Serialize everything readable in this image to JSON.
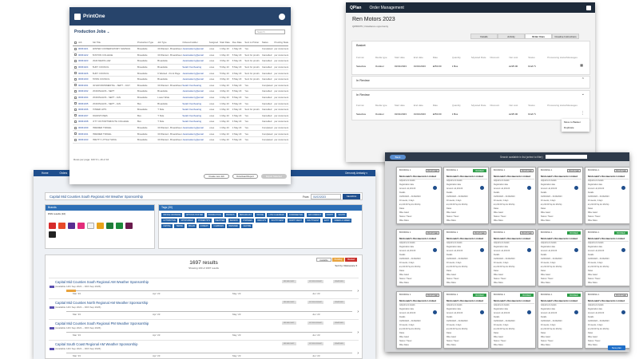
{
  "printone": {
    "brand": "PrintOne",
    "section_title": "Production Jobs",
    "search_placeholder": "Search",
    "columns": [
      "Job",
      "Job Title",
      "Production Type",
      "Job Type",
      "Ordered Holder",
      "Assigned",
      "Start Date",
      "Due Date",
      "Sent to Printer",
      "Status",
      "Proofing Status"
    ],
    "rows": [
      [
        "00061021",
        "WINTER CONSERVATORY SAVINGS",
        "Broadside",
        "30 Wanted - Broadsheet",
        "JessicaHenry@email",
        "jones",
        "1 May 23",
        "1 May 23",
        "Yes",
        "Completed",
        "per customers"
      ],
      [
        "00061222",
        "BOSTON COLLEGE",
        "Broadside",
        "30 Wanted - Broadsheet",
        "JessicaHenry@email",
        "jones",
        "1 May 23",
        "5 May 23",
        "Sent for proofs",
        "Cancelled",
        "per customers"
      ],
      [
        "00061023",
        "MAIN NEWS LAW",
        "Broadside",
        "Broadside",
        "JessicaHenry@email",
        "jones",
        "3 May 23",
        "6 May 23",
        "Sent for proofs",
        "Cancelled",
        "per customers"
      ],
      [
        "00061024",
        "BURY COUNCIL",
        "Broadside",
        "Broadside",
        "Sarah Overhearing",
        "jones",
        "5 May 23",
        "8 May 23",
        "Sent for proofs",
        "Cancelled",
        "per customers"
      ],
      [
        "00061026",
        "BURY COUNCIL",
        "Broadside",
        "6 Wanted - Front Page",
        "JessicaHenry@email",
        "jones",
        "5 May 23",
        "9 May 23",
        "Sent for proofs",
        "Cancelled",
        "per customers"
      ],
      [
        "00061030",
        "TOWN COUNCIL",
        "Broadside",
        "Broadside",
        "JessicaHenry@email",
        "jones",
        "3 May 23",
        "8 May 23",
        "Sent for proofs",
        "Cancelled",
        "per customers"
      ],
      [
        "00061031",
        "CR ENVIRONMENTAL - SEPT - JULY",
        "Broadside",
        "30 Wanted - Broadsheet",
        "Sarah Overhearing",
        "jones",
        "1 May 23",
        "6 May 23",
        "Yes",
        "Completed",
        "per customers"
      ],
      [
        "00061032",
        "MCDONALDS - SEPT",
        "Broadside",
        "Broadside",
        "JessicaHenry@email",
        "jones",
        "4 May 23",
        "8 May 23",
        "Yes",
        "Cancelled",
        "per customers"
      ],
      [
        "00061034",
        "MCDONALDS - SEPT - JAN",
        "Broadside",
        "Lower Wide",
        "JessicaHenry@email",
        "jones",
        "1 May 23",
        "8 May 23",
        "Yes",
        "Cancelled",
        "per customers"
      ],
      [
        "00061035",
        "MCDONALDS - SEPT - JAN",
        "Bus",
        "Broadside",
        "Sarah Overhearing",
        "jones",
        "1 May 23",
        "8 May 23",
        "Yes",
        "Cancelled",
        "per customers"
      ],
      [
        "00061036",
        "POWER HITS",
        "Broadside",
        "T Side",
        "Sarah Overhearing",
        "jones",
        "1 May 23",
        "3 May 23",
        "Sent for proofs",
        "Cancelled",
        "per customers"
      ],
      [
        "00061037",
        "JOHNSTONES",
        "Bus",
        "T Side",
        "Sarah Overhearing",
        "jones",
        "1 May 23",
        "4 May 23",
        "Yes",
        "Cancelled",
        "per customers"
      ],
      [
        "00061038",
        "CITY OF PORTSMOUTH COLLEGE",
        "Bus",
        "T Side",
        "Sarah Overhearing",
        "jones",
        "1 May 23",
        "4 May 23",
        "Yes",
        "Cancelled",
        "per customers"
      ],
      [
        "00061039",
        "PREMIER TRAVEL",
        "Broadside",
        "30 Wanted - Broadsheet",
        "JessicaHenry@email",
        "jones",
        "1 May 23",
        "1 May 23",
        "Yes",
        "Completed",
        "per customers"
      ],
      [
        "00061041",
        "PREMIER TRAVEL",
        "Broadside",
        "30 Wanted - Broadsheet",
        "JessicaHenry@email",
        "jones",
        "1 May 23",
        "3 May 23",
        "Yes",
        "Completed",
        "per customers"
      ],
      [
        "00061043",
        "PRETTY LITTLE THING",
        "Broadside",
        "30 Wanted - Broadsheet",
        "JessicaHenry@email",
        "jones",
        "1 May 23",
        "5 May 23",
        "Yes",
        "Completed",
        "per customers"
      ]
    ],
    "footer": "Rows per page:  100  ▾     1–16 of 16",
    "buttons": [
      "Create new Job",
      "Download Report",
      "Export Selected"
    ]
  },
  "qplan": {
    "brand": "QPlan",
    "module": "Order Management",
    "title": "Ren Motors 2023",
    "subtitle": "QR58075  |  Ostellance opportunity",
    "tabs": [
      "Details",
      "Activity",
      "Order lines",
      "Creative Instructions"
    ],
    "basket_label": "Basket",
    "review_label": "In Review",
    "columns": [
      "Format",
      "Media type",
      "Start date",
      "End date",
      "Rate",
      "Quantity",
      "Adjusted Rate",
      "Discount",
      "Net cost",
      "Status",
      "Processing status",
      "Messages"
    ],
    "basket_row": [
      "Selective",
      "Outdoor",
      "01/01/2023",
      "31/01/2023",
      "£250.00",
      "1 Bus",
      "",
      "",
      "£225.00",
      "Draft ✎",
      "",
      ""
    ],
    "review_row": [
      "Selective",
      "Outdoor",
      "01/01/2023",
      "31/01/2023",
      "£250.00",
      "1 Bus",
      "",
      "",
      "£225.00",
      "Draft ✎",
      "",
      ""
    ],
    "menu": [
      "Move to Basket",
      "Duplicate"
    ]
  },
  "sponsor": {
    "nav": [
      "Home",
      "Orders",
      "Admin",
      "Advanced"
    ],
    "nav_right": "Ormondy Ambady ▾",
    "query": "Capital Mid Counties South Regional AM Weather Sponsorship",
    "from_label": "From",
    "from_date": "01/02/2023",
    "search_button": "SEARCH",
    "brands_title": "Brands",
    "brands_sub": "DSN results (10)",
    "tags_title": "Tags (30)",
    "tags": [
      "OFFICE CROSSING",
      "OPTIONS HOSTED",
      "PRODUCTION",
      "PROMOS",
      "BROADCAST",
      "OFFICE",
      "LOW CALENDAR",
      "CONFIDENTIAL",
      "AIR COMPACT",
      "NORTH",
      "SOUTH",
      "AUTOMOTIVE",
      "SPONSORED",
      "POWER HITS",
      "WEATHER",
      "SEASON",
      "CHANGES",
      "RESULTS",
      "SOUTH WEST",
      "NORTH WEST",
      "SOUTH EAST",
      "EAST",
      "GREEN & GREEN",
      "CAPITAL",
      "TRAVEL",
      "WALES",
      "COMEDY",
      "CAMPAIGN",
      "BRANDED",
      "CENTRE"
    ],
    "legend": [
      "Available",
      "Pending",
      "Booked"
    ],
    "count": "1697 results",
    "showing": "Showing 100 of 1697 results",
    "sort_label": "Sort by:  Relevance ▾",
    "results": [
      {
        "title": "Capital Mid Counties South Regional AM Weather Sponsorship",
        "dates": "(Available 14th Sep 2021 – 30th Sep 2026)"
      },
      {
        "title": "Capital Mid Counties North Regional AM Weather Sponsorship",
        "dates": "(Available 14th Sep 2021 – 30th Sep 2026)"
      },
      {
        "title": "Capital Mid Counties South Regional PM Weather Sponsorship",
        "dates": "(Available 14th Sep 2021 – 30th Sep 2026)"
      },
      {
        "title": "Capital South Coast Regional AM Weather Sponsorship",
        "dates": "(Available 14th Sep 2021 – 30th Sep 2026)"
      }
    ],
    "months": [
      "Mar '23",
      "Apr '23",
      "May '23",
      "Jun '23"
    ],
    "pills": [
      "BROADCAST",
      "SPONSORSHIP",
      "WEATHER"
    ]
  },
  "kanban": {
    "back_label": "Back",
    "hint": "Search available in list (select to filter)",
    "new_plan": "New plan",
    "card_title": "Mcdonald's Restaurants Limited",
    "booking_id": "BOOKING 1",
    "lines": [
      "Adjustment details",
      "Registration date",
      "Amount: £1,219.00",
      "Details",
      "01/06/2023 – 31/06/2023",
      "40 weeks, 4 days",
      "£1,219.00 Sq km Mcchip",
      "Dates",
      "Mike Gatez",
      "Status / Travel",
      "Mike Dales"
    ],
    "statuses": [
      "PROPOSED",
      "BOOKED",
      "PROPOSED",
      "PROPOSED",
      "PROPOSED",
      "PROPOSED",
      "PROPOSED",
      "PROPOSED",
      "BOOKED",
      "BOOKED",
      "PROPOSED",
      "BOOKED",
      "BOOKED",
      "BOOKED",
      "PROPOSED"
    ]
  },
  "colors": {
    "navy": "#27446b",
    "accent_blue": "#1f4e8c",
    "booked_green": "#2f9e4a",
    "pending_orange": "#e8a33d"
  }
}
